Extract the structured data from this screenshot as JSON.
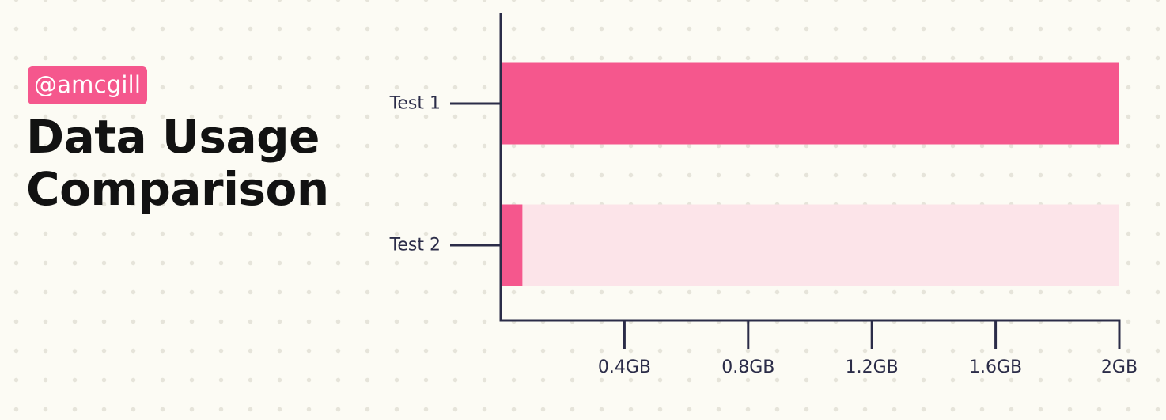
{
  "header": {
    "handle": "@amcgill",
    "title_line1": "Data Usage",
    "title_line2": "Comparison"
  },
  "colors": {
    "background": "#fcfbf4",
    "bar_fill": "#f5578d",
    "bar_track": "#fce4e9",
    "axis": "#2b2c48",
    "title": "#121212"
  },
  "chart_data": {
    "type": "bar",
    "orientation": "horizontal",
    "categories": [
      "Test 1",
      "Test 2"
    ],
    "values": [
      2.0,
      0.07
    ],
    "unit": "GB",
    "xlim": [
      0,
      2.0
    ],
    "x_ticks": [
      0.4,
      0.8,
      1.2,
      1.6,
      2.0
    ],
    "x_tick_labels": [
      "0.4GB",
      "0.8GB",
      "1.2GB",
      "1.6GB",
      "2GB"
    ],
    "title": "",
    "xlabel": "",
    "ylabel": "",
    "grid": false,
    "legend": "none",
    "background_track": true
  }
}
